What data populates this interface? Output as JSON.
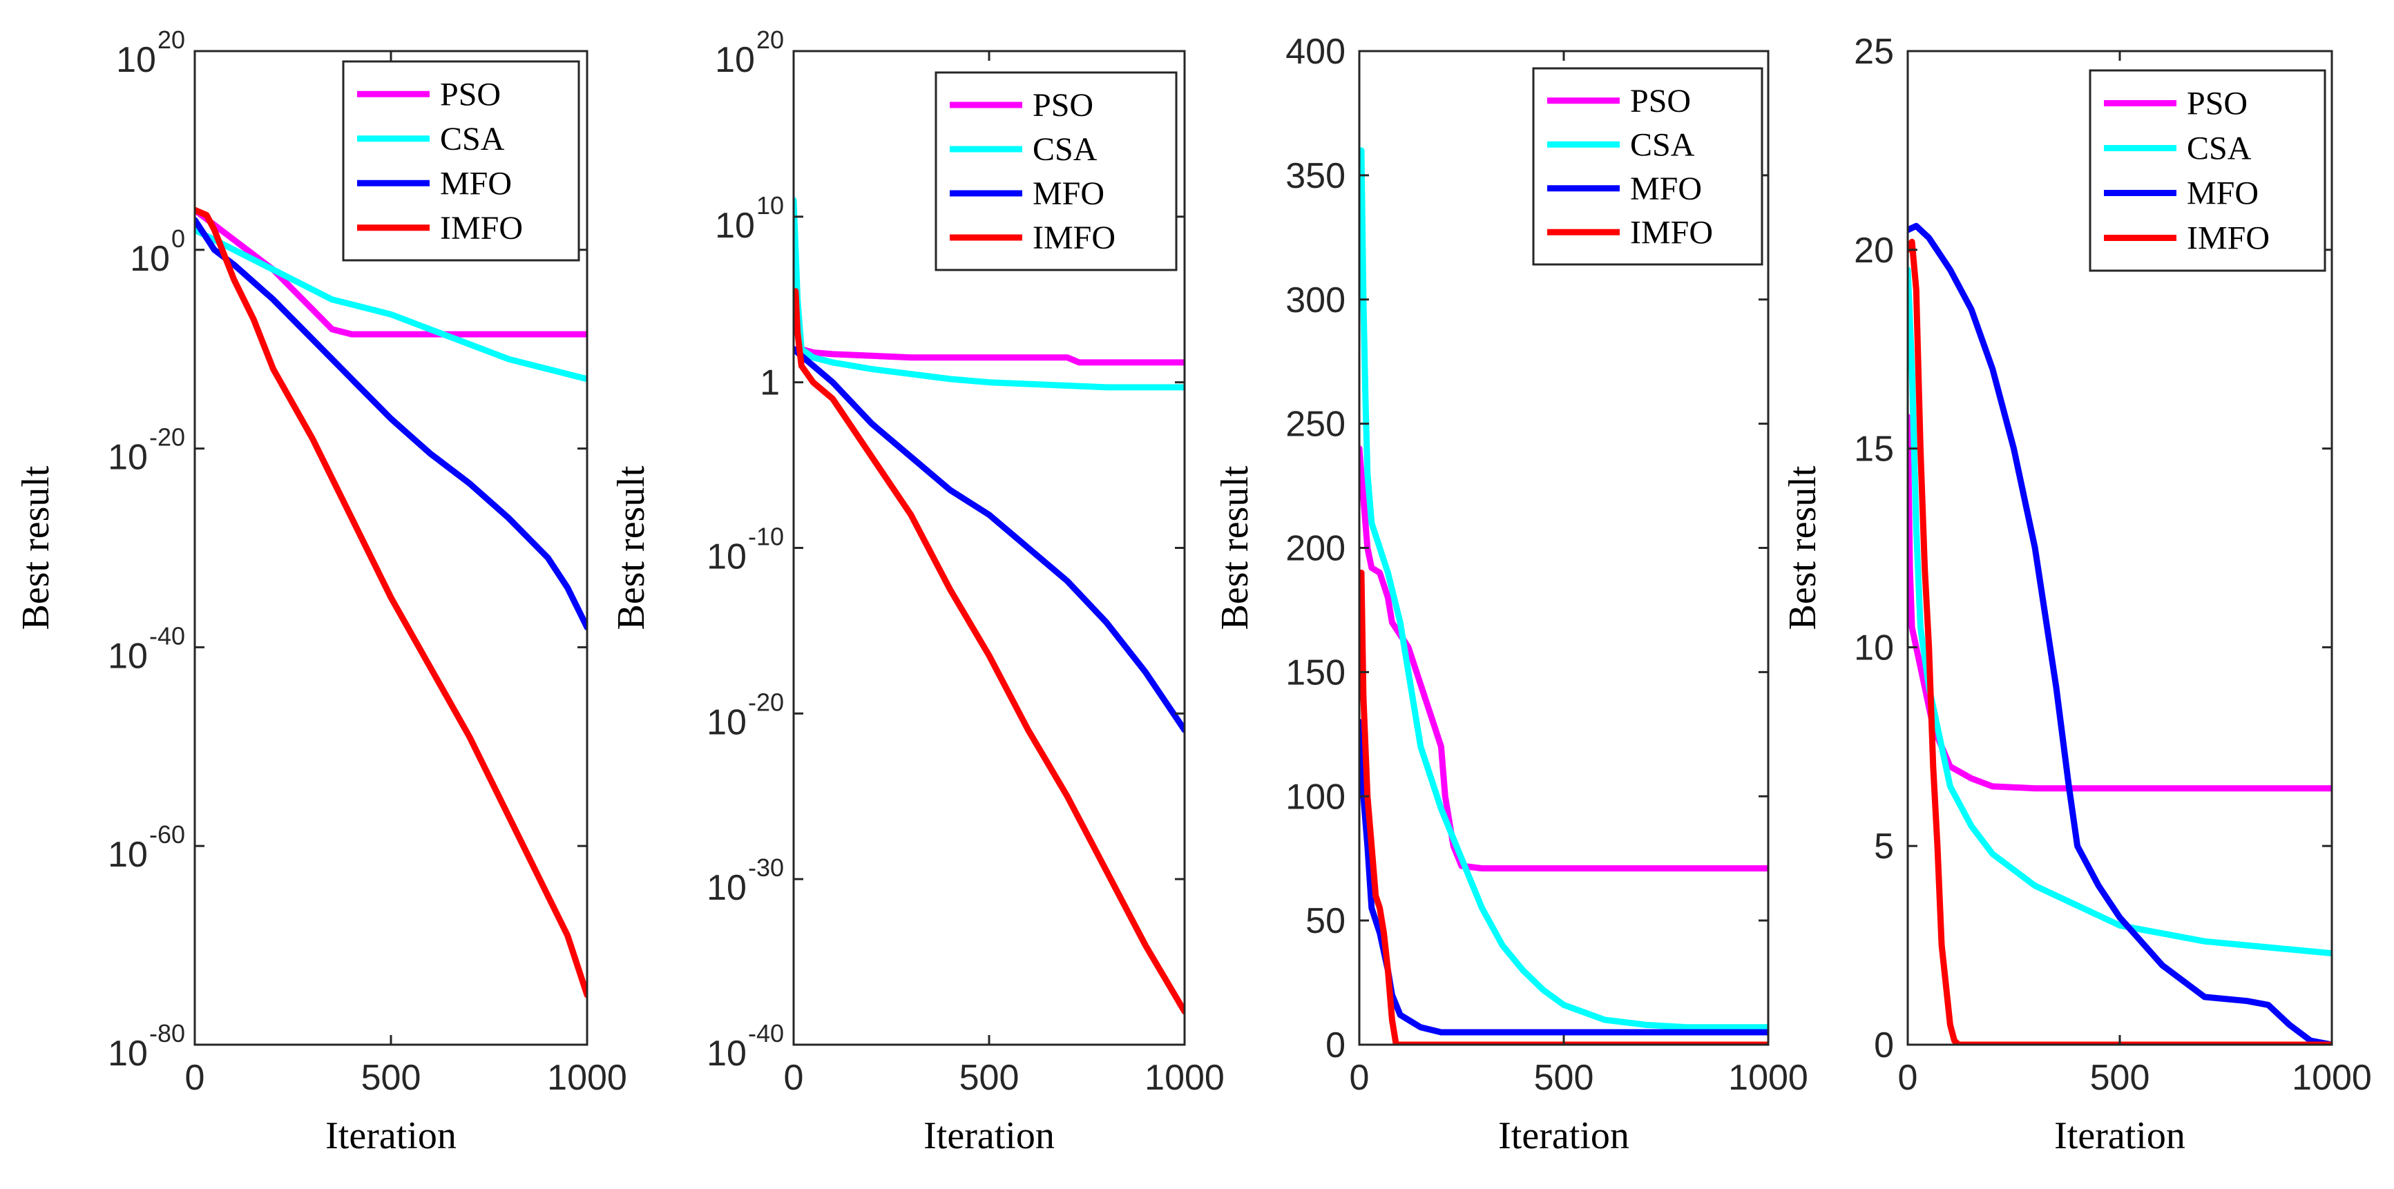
{
  "chart_data": [
    {
      "type": "line",
      "xlabel": "Iteration",
      "ylabel": "Best result",
      "xlim": [
        0,
        1000
      ],
      "xticks": [
        "0",
        "500",
        "1000"
      ],
      "yscale": "log",
      "ylim_exp": [
        -80,
        20
      ],
      "yticks": [
        {
          "base": "10",
          "exp": "20"
        },
        {
          "base": "10",
          "exp": "0"
        },
        {
          "base": "10",
          "exp": "-20"
        },
        {
          "base": "10",
          "exp": "-40"
        },
        {
          "base": "10",
          "exp": "-60"
        },
        {
          "base": "10",
          "exp": "-80"
        }
      ],
      "grid": false,
      "legend_position": "top-right",
      "series": [
        {
          "name": "PSO",
          "color": "#ff00ff",
          "x": [
            0,
            50,
            100,
            150,
            200,
            250,
            300,
            350,
            400,
            500,
            600,
            700,
            800,
            900,
            1000
          ],
          "y_log10": [
            4,
            2.5,
            1,
            -0.5,
            -2,
            -4,
            -6,
            -8,
            -8.5,
            -8.5,
            -8.5,
            -8.5,
            -8.5,
            -8.5,
            -8.5
          ]
        },
        {
          "name": "CSA",
          "color": "#00ffff",
          "x": [
            0,
            50,
            100,
            150,
            200,
            250,
            300,
            350,
            400,
            500,
            600,
            700,
            800,
            900,
            1000
          ],
          "y_log10": [
            2,
            1,
            0,
            -1,
            -2,
            -3,
            -4,
            -5,
            -5.5,
            -6.5,
            -8,
            -9.5,
            -11,
            -12,
            -13
          ]
        },
        {
          "name": "MFO",
          "color": "#0000ff",
          "x": [
            0,
            50,
            100,
            200,
            300,
            400,
            500,
            600,
            700,
            800,
            850,
            900,
            950,
            1000
          ],
          "y_log10": [
            3,
            0,
            -1.5,
            -5,
            -9,
            -13,
            -17,
            -20.5,
            -23.5,
            -27,
            -29,
            -31,
            -34,
            -38
          ]
        },
        {
          "name": "IMFO",
          "color": "#ff0000",
          "x": [
            0,
            30,
            50,
            100,
            150,
            200,
            300,
            400,
            500,
            600,
            700,
            800,
            900,
            950,
            1000
          ],
          "y_log10": [
            4,
            3.5,
            2,
            -3,
            -7,
            -12,
            -19,
            -27,
            -35,
            -42,
            -49,
            -57,
            -65,
            -69,
            -75
          ]
        }
      ]
    },
    {
      "type": "line",
      "xlabel": "Iteration",
      "ylabel": "Best result",
      "xlim": [
        0,
        1000
      ],
      "xticks": [
        "0",
        "500",
        "1000"
      ],
      "yscale": "log",
      "ylim_exp": [
        -40,
        20
      ],
      "yticks": [
        {
          "base": "10",
          "exp": "20"
        },
        {
          "base": "10",
          "exp": "10"
        },
        {
          "base": "1",
          "exp": "0"
        },
        {
          "base": "10",
          "exp": "-10"
        },
        {
          "base": "10",
          "exp": "-20"
        },
        {
          "base": "10",
          "exp": "-30"
        },
        {
          "base": "10",
          "exp": "-40"
        }
      ],
      "grid": false,
      "legend_position": "top-right",
      "series": [
        {
          "name": "PSO",
          "color": "#ff00ff",
          "x": [
            0,
            20,
            50,
            100,
            200,
            300,
            400,
            500,
            600,
            700,
            730,
            800,
            900,
            1000
          ],
          "y_log10": [
            2,
            2,
            1.8,
            1.7,
            1.6,
            1.5,
            1.5,
            1.5,
            1.5,
            1.5,
            1.2,
            1.2,
            1.2,
            1.2
          ]
        },
        {
          "name": "CSA",
          "color": "#00ffff",
          "x": [
            0,
            10,
            20,
            50,
            100,
            200,
            300,
            400,
            500,
            600,
            700,
            800,
            900,
            1000
          ],
          "y_log10": [
            11,
            5,
            2,
            1.5,
            1.2,
            0.8,
            0.5,
            0.2,
            0,
            -0.1,
            -0.2,
            -0.3,
            -0.3,
            -0.3
          ]
        },
        {
          "name": "MFO",
          "color": "#0000ff",
          "x": [
            0,
            50,
            100,
            200,
            300,
            400,
            500,
            600,
            700,
            800,
            900,
            1000
          ],
          "y_log10": [
            2,
            1,
            0,
            -2.5,
            -4.5,
            -6.5,
            -8,
            -10,
            -12,
            -14.5,
            -17.5,
            -21
          ]
        },
        {
          "name": "IMFO",
          "color": "#ff0000",
          "x": [
            0,
            5,
            10,
            20,
            50,
            100,
            200,
            300,
            400,
            500,
            600,
            700,
            800,
            900,
            1000
          ],
          "y_log10": [
            5,
            5.5,
            3,
            1,
            0,
            -1,
            -4.5,
            -8,
            -12.5,
            -16.5,
            -21,
            -25,
            -29.5,
            -34,
            -38
          ]
        }
      ]
    },
    {
      "type": "line",
      "xlabel": "Iteration",
      "ylabel": "Best result",
      "xlim": [
        0,
        1000
      ],
      "xticks": [
        "0",
        "500",
        "1000"
      ],
      "ylim": [
        0,
        400
      ],
      "yticks": [
        "0",
        "50",
        "100",
        "150",
        "200",
        "250",
        "300",
        "350",
        "400"
      ],
      "grid": false,
      "legend_position": "top-right",
      "series": [
        {
          "name": "PSO",
          "color": "#ff00ff",
          "x": [
            0,
            10,
            20,
            30,
            50,
            70,
            80,
            100,
            120,
            150,
            180,
            200,
            210,
            230,
            250,
            300,
            1000
          ],
          "y": [
            240,
            220,
            200,
            192,
            190,
            180,
            170,
            165,
            160,
            145,
            130,
            120,
            100,
            80,
            72,
            71,
            71
          ]
        },
        {
          "name": "CSA",
          "color": "#00ffff",
          "x": [
            0,
            5,
            10,
            15,
            20,
            30,
            50,
            70,
            100,
            150,
            200,
            250,
            300,
            350,
            400,
            450,
            500,
            600,
            700,
            800,
            900,
            1000
          ],
          "y": [
            310,
            360,
            300,
            260,
            230,
            210,
            200,
            190,
            170,
            120,
            95,
            75,
            55,
            40,
            30,
            22,
            16,
            10,
            8,
            7,
            7,
            7
          ]
        },
        {
          "name": "MFO",
          "color": "#0000ff",
          "x": [
            0,
            10,
            20,
            30,
            50,
            70,
            80,
            100,
            120,
            150,
            200,
            300,
            400,
            600,
            800,
            1000
          ],
          "y": [
            130,
            100,
            80,
            55,
            45,
            30,
            20,
            12,
            10,
            7,
            5,
            5,
            5,
            5,
            5,
            5
          ]
        },
        {
          "name": "IMFO",
          "color": "#ff0000",
          "x": [
            0,
            5,
            10,
            20,
            30,
            40,
            50,
            60,
            70,
            80,
            90,
            100,
            200,
            400,
            700,
            1000
          ],
          "y": [
            180,
            190,
            140,
            100,
            80,
            60,
            55,
            45,
            30,
            10,
            0,
            0,
            0,
            0,
            0,
            0
          ]
        }
      ]
    },
    {
      "type": "line",
      "xlabel": "Iteration",
      "ylabel": "Best result",
      "xlim": [
        0,
        1000
      ],
      "xticks": [
        "0",
        "500",
        "1000"
      ],
      "ylim": [
        0,
        25
      ],
      "yticks": [
        "0",
        "5",
        "10",
        "15",
        "20",
        "25"
      ],
      "grid": false,
      "legend_position": "top-right",
      "series": [
        {
          "name": "PSO",
          "color": "#ff00ff",
          "x": [
            0,
            5,
            10,
            20,
            40,
            60,
            80,
            100,
            150,
            200,
            300,
            500,
            1000
          ],
          "y": [
            15.8,
            12,
            10.5,
            10,
            9,
            8,
            7.5,
            7,
            6.7,
            6.5,
            6.45,
            6.45,
            6.45
          ]
        },
        {
          "name": "CSA",
          "color": "#00ffff",
          "x": [
            0,
            10,
            20,
            30,
            50,
            80,
            100,
            150,
            200,
            300,
            400,
            500,
            600,
            700,
            800,
            900,
            1000
          ],
          "y": [
            19.5,
            17,
            13,
            10.5,
            9,
            7.5,
            6.5,
            5.5,
            4.8,
            4,
            3.5,
            3,
            2.8,
            2.6,
            2.5,
            2.4,
            2.3
          ]
        },
        {
          "name": "MFO",
          "color": "#0000ff",
          "x": [
            0,
            20,
            50,
            100,
            150,
            200,
            250,
            300,
            350,
            380,
            400,
            450,
            500,
            550,
            600,
            650,
            700,
            800,
            850,
            900,
            950,
            1000
          ],
          "y": [
            20.5,
            20.6,
            20.3,
            19.5,
            18.5,
            17,
            15,
            12.5,
            9,
            6.5,
            5,
            4,
            3.2,
            2.6,
            2,
            1.6,
            1.2,
            1.1,
            1,
            0.5,
            0.1,
            0
          ]
        },
        {
          "name": "IMFO",
          "color": "#ff0000",
          "x": [
            0,
            10,
            20,
            30,
            40,
            50,
            60,
            70,
            80,
            90,
            100,
            110,
            120,
            150,
            300,
            600,
            1000
          ],
          "y": [
            20,
            20.2,
            19,
            15,
            12,
            10,
            7,
            5,
            2.5,
            1.5,
            0.5,
            0.1,
            0,
            0,
            0,
            0,
            0
          ]
        }
      ]
    }
  ]
}
